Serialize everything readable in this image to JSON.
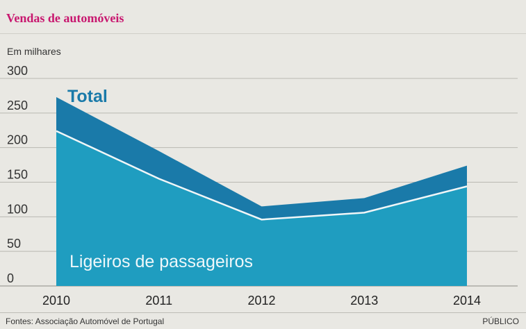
{
  "header": {
    "title": "Vendas de automóveis"
  },
  "chart_data": {
    "type": "area",
    "unit_label": "Em milhares",
    "x": [
      "2010",
      "2011",
      "2012",
      "2013",
      "2014"
    ],
    "yticks": [
      "300",
      "250",
      "200",
      "150",
      "100",
      "50",
      "0"
    ],
    "ylim": [
      0,
      300
    ],
    "grid": true,
    "series": [
      {
        "name": "Total",
        "values": [
          273,
          195,
          115,
          127,
          174
        ],
        "color": "#1a7aa9"
      },
      {
        "name": "Ligeiros de passageiros",
        "values": [
          224,
          155,
          96,
          106,
          144
        ],
        "color": "#1f9dc0"
      }
    ],
    "line_color": "#f0f6f8"
  },
  "footer": {
    "source": "Fontes: Associação Automóvel de Portugal",
    "brand": "PÚBLICO"
  }
}
